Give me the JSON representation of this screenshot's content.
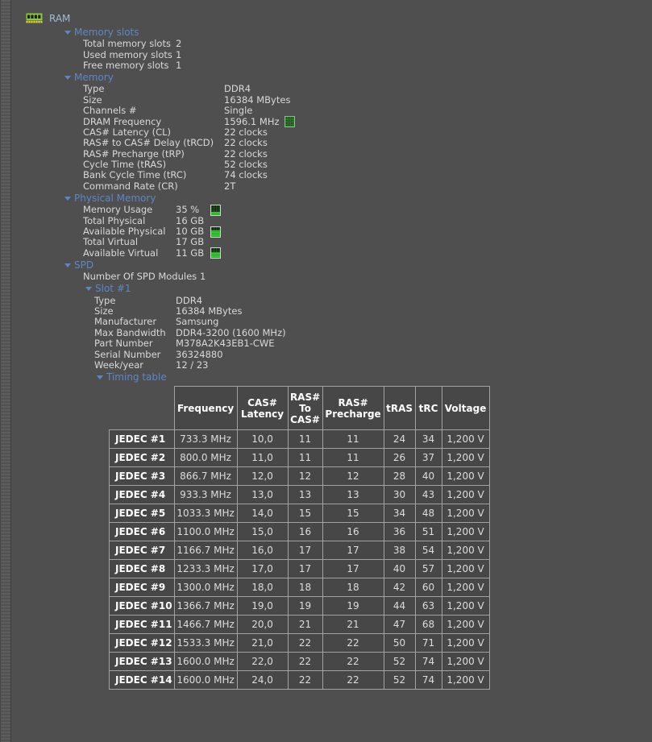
{
  "colors": {
    "background": "#4f4f4f",
    "section_header_blue": "#5d87c4",
    "root_label_blue_gray": "#a3bad1",
    "table_border": "#a2a2a2",
    "gauge_green": "#38d338",
    "ram_icon_green": "#8dc63f",
    "ram_icon_pins_yellow": "#e8d44d"
  },
  "tree": {
    "root_label": "RAM",
    "root_icon": "ram-module-icon",
    "sections": [
      {
        "id": "memory-slots",
        "label": "Memory slots",
        "rows": [
          {
            "label": "Total memory slots",
            "value": "2"
          },
          {
            "label": "Used memory slots",
            "value": "1"
          },
          {
            "label": "Free memory slots",
            "value": "1"
          }
        ]
      },
      {
        "id": "memory",
        "label": "Memory",
        "rows": [
          {
            "label": "Type",
            "value": "DDR4"
          },
          {
            "label": "Size",
            "value": "16384 MBytes"
          },
          {
            "label": "Channels #",
            "value": "Single"
          },
          {
            "label": "DRAM Frequency",
            "value": "1596.1 MHz",
            "icon": "chip-gauge-icon"
          },
          {
            "label": "CAS# Latency (CL)",
            "value": "22 clocks"
          },
          {
            "label": "RAS# to CAS# Delay (tRCD)",
            "value": "22 clocks"
          },
          {
            "label": "RAS# Precharge (tRP)",
            "value": "22 clocks"
          },
          {
            "label": "Cycle Time (tRAS)",
            "value": "52 clocks"
          },
          {
            "label": "Bank Cycle Time (tRC)",
            "value": "74 clocks"
          },
          {
            "label": "Command Rate (CR)",
            "value": "2T"
          }
        ]
      },
      {
        "id": "physical-memory",
        "label": "Physical Memory",
        "rows": [
          {
            "label": "Memory Usage",
            "value": "35 %",
            "icon": "gauge-icon",
            "gauge": 0.35
          },
          {
            "label": "Total Physical",
            "value": "16 GB"
          },
          {
            "label": "Available Physical",
            "value": "10 GB",
            "icon": "gauge-icon",
            "gauge": 0.62
          },
          {
            "label": "Total Virtual",
            "value": "17 GB"
          },
          {
            "label": "Available Virtual",
            "value": "11 GB",
            "icon": "gauge-icon",
            "gauge": 0.65
          }
        ]
      },
      {
        "id": "spd",
        "label": "SPD",
        "rows": [
          {
            "label": "Number Of SPD Modules",
            "value": "1"
          }
        ]
      }
    ],
    "slot": {
      "label": "Slot #1",
      "rows": [
        {
          "label": "Type",
          "value": "DDR4"
        },
        {
          "label": "Size",
          "value": "16384 MBytes"
        },
        {
          "label": "Manufacturer",
          "value": "Samsung"
        },
        {
          "label": "Max Bandwidth",
          "value": "DDR4-3200 (1600 MHz)"
        },
        {
          "label": "Part Number",
          "value": "M378A2K43EB1-CWE"
        },
        {
          "label": "Serial Number",
          "value": "36324880"
        },
        {
          "label": "Week/year",
          "value": "12 / 23"
        }
      ],
      "timing_table": {
        "label": "Timing table",
        "columns": [
          "",
          "Frequency",
          "CAS# Latency",
          "RAS# To CAS#",
          "RAS# Precharge",
          "tRAS",
          "tRC",
          "Voltage"
        ],
        "rows": [
          {
            "name": "JEDEC #1",
            "values": [
              "733.3 MHz",
              "10,0",
              "11",
              "11",
              "24",
              "34",
              "1,200 V"
            ]
          },
          {
            "name": "JEDEC #2",
            "values": [
              "800.0 MHz",
              "11,0",
              "11",
              "11",
              "26",
              "37",
              "1,200 V"
            ]
          },
          {
            "name": "JEDEC #3",
            "values": [
              "866.7 MHz",
              "12,0",
              "12",
              "12",
              "28",
              "40",
              "1,200 V"
            ]
          },
          {
            "name": "JEDEC #4",
            "values": [
              "933.3 MHz",
              "13,0",
              "13",
              "13",
              "30",
              "43",
              "1,200 V"
            ]
          },
          {
            "name": "JEDEC #5",
            "values": [
              "1033.3 MHz",
              "14,0",
              "15",
              "15",
              "34",
              "48",
              "1,200 V"
            ]
          },
          {
            "name": "JEDEC #6",
            "values": [
              "1100.0 MHz",
              "15,0",
              "16",
              "16",
              "36",
              "51",
              "1,200 V"
            ]
          },
          {
            "name": "JEDEC #7",
            "values": [
              "1166.7 MHz",
              "16,0",
              "17",
              "17",
              "38",
              "54",
              "1,200 V"
            ]
          },
          {
            "name": "JEDEC #8",
            "values": [
              "1233.3 MHz",
              "17,0",
              "17",
              "17",
              "40",
              "57",
              "1,200 V"
            ]
          },
          {
            "name": "JEDEC #9",
            "values": [
              "1300.0 MHz",
              "18,0",
              "18",
              "18",
              "42",
              "60",
              "1,200 V"
            ]
          },
          {
            "name": "JEDEC #10",
            "values": [
              "1366.7 MHz",
              "19,0",
              "19",
              "19",
              "44",
              "63",
              "1,200 V"
            ]
          },
          {
            "name": "JEDEC #11",
            "values": [
              "1466.7 MHz",
              "20,0",
              "21",
              "21",
              "47",
              "68",
              "1,200 V"
            ]
          },
          {
            "name": "JEDEC #12",
            "values": [
              "1533.3 MHz",
              "21,0",
              "22",
              "22",
              "50",
              "71",
              "1,200 V"
            ]
          },
          {
            "name": "JEDEC #13",
            "values": [
              "1600.0 MHz",
              "22,0",
              "22",
              "22",
              "52",
              "74",
              "1,200 V"
            ]
          },
          {
            "name": "JEDEC #14",
            "values": [
              "1600.0 MHz",
              "24,0",
              "22",
              "22",
              "52",
              "74",
              "1,200 V"
            ]
          }
        ]
      }
    }
  }
}
